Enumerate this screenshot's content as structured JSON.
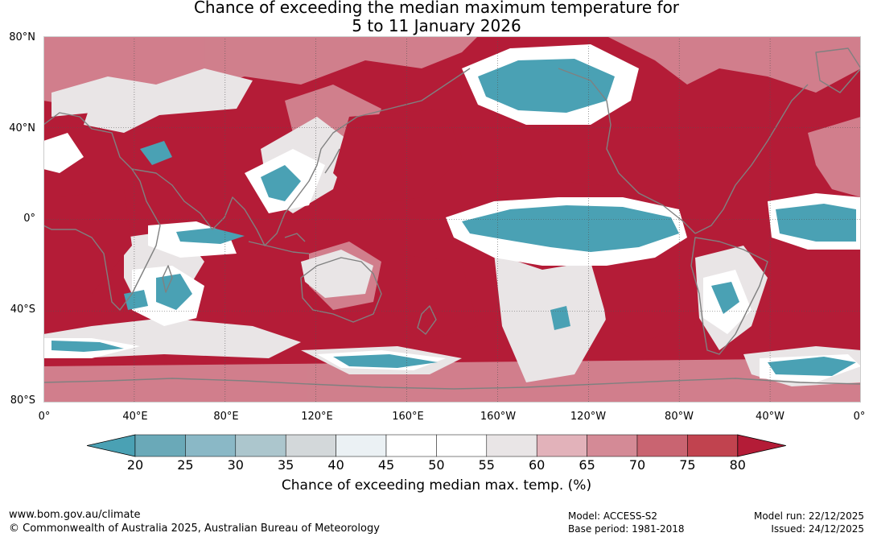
{
  "title": {
    "line1": "Chance of exceeding the median maximum temperature for",
    "line2": "5 to 11 January 2026"
  },
  "map": {
    "lat_labels": [
      "80°N",
      "40°N",
      "0°",
      "40°S",
      "80°S"
    ],
    "lon_labels": [
      "0°",
      "40°E",
      "80°E",
      "120°E",
      "160°E",
      "160°W",
      "120°W",
      "80°W",
      "40°W",
      "0°"
    ],
    "colors": {
      "warm_strong": "#b41c37",
      "cool_strong": "#4aa1b4",
      "coastline": "#808080",
      "grid": "#555555"
    }
  },
  "colorbar": {
    "ticks": [
      "20",
      "25",
      "30",
      "35",
      "40",
      "45",
      "50",
      "55",
      "60",
      "65",
      "70",
      "75",
      "80"
    ],
    "colors": [
      "#4aa1b4",
      "#6aa9b8",
      "#8ab8c6",
      "#acc6cd",
      "#d3d8da",
      "#ebf1f4",
      "#ffffff",
      "#ffffff",
      "#e9e5e6",
      "#e2b2ba",
      "#d48a96",
      "#c96471",
      "#c1434f",
      "#b41c37"
    ],
    "label": "Chance of exceeding median max. temp. (%)"
  },
  "footer": {
    "site": "www.bom.gov.au/climate",
    "copyright": "© Commonwealth of Australia 2025, Australian Bureau of Meteorology",
    "model": "Model: ACCESS-S2",
    "base_period": "Base period: 1981-2018",
    "model_run": "Model run: 22/12/2025",
    "issued": "Issued: 24/12/2025"
  }
}
